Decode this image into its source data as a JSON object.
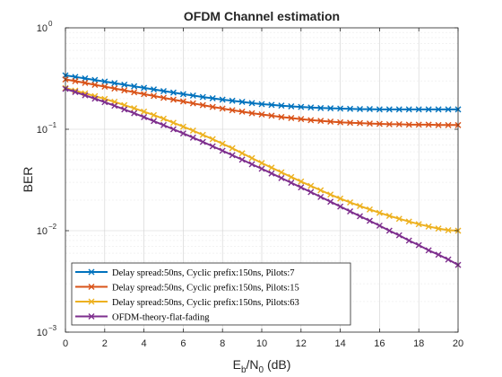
{
  "chart_data": {
    "type": "line",
    "title": "OFDM Channel estimation",
    "xlabel": "E_b/N_0 (dB)",
    "ylabel": "BER",
    "xlim": [
      0,
      20
    ],
    "ylim": [
      0.001,
      1
    ],
    "yscale": "log",
    "grid": true,
    "minor_grid": true,
    "legend_position": "bottom-left",
    "x": [
      0,
      0.5,
      1,
      1.5,
      2,
      2.5,
      3,
      3.5,
      4,
      4.5,
      5,
      5.5,
      6,
      6.5,
      7,
      7.5,
      8,
      8.5,
      9,
      9.5,
      10,
      10.5,
      11,
      11.5,
      12,
      12.5,
      13,
      13.5,
      14,
      14.5,
      15,
      15.5,
      16,
      16.5,
      17,
      17.5,
      18,
      18.5,
      19,
      19.5,
      20
    ],
    "x_ticks": [
      0,
      2,
      4,
      6,
      8,
      10,
      12,
      14,
      16,
      18,
      20
    ],
    "x_tick_labels": [
      "0",
      "2",
      "4",
      "6",
      "8",
      "10",
      "12",
      "14",
      "16",
      "18",
      "20"
    ],
    "y_ticks": [
      1,
      0.1,
      0.01,
      0.001
    ],
    "y_tick_labels": [
      {
        "base": "10",
        "exp": "0"
      },
      {
        "base": "10",
        "exp": "−1"
      },
      {
        "base": "10",
        "exp": "−2"
      },
      {
        "base": "10",
        "exp": "−3"
      }
    ],
    "series": [
      {
        "name": "Delay spread:50ns, Cyclic prefix:150ns, Pilots:7",
        "color": "#0072BD",
        "values": [
          0.34,
          0.328,
          0.317,
          0.306,
          0.295,
          0.285,
          0.275,
          0.265,
          0.256,
          0.247,
          0.238,
          0.23,
          0.222,
          0.215,
          0.208,
          0.202,
          0.196,
          0.191,
          0.186,
          0.181,
          0.177,
          0.174,
          0.171,
          0.168,
          0.166,
          0.164,
          0.162,
          0.161,
          0.16,
          0.159,
          0.158,
          0.158,
          0.157,
          0.157,
          0.157,
          0.157,
          0.157,
          0.157,
          0.157,
          0.157,
          0.157
        ]
      },
      {
        "name": "Delay spread:50ns, Cyclic prefix:150ns, Pilots:15",
        "color": "#D95319",
        "values": [
          0.31,
          0.298,
          0.286,
          0.274,
          0.263,
          0.252,
          0.242,
          0.232,
          0.222,
          0.213,
          0.204,
          0.196,
          0.188,
          0.18,
          0.173,
          0.166,
          0.16,
          0.154,
          0.149,
          0.144,
          0.14,
          0.136,
          0.132,
          0.129,
          0.126,
          0.123,
          0.121,
          0.119,
          0.117,
          0.116,
          0.115,
          0.114,
          0.113,
          0.112,
          0.112,
          0.111,
          0.111,
          0.111,
          0.11,
          0.11,
          0.11
        ]
      },
      {
        "name": "Delay spread:50ns, Cyclic prefix:150ns, Pilots:63",
        "color": "#EDB120",
        "values": [
          0.255,
          0.24,
          0.226,
          0.212,
          0.199,
          0.186,
          0.173,
          0.161,
          0.149,
          0.138,
          0.127,
          0.116,
          0.106,
          0.097,
          0.088,
          0.08,
          0.072,
          0.065,
          0.058,
          0.052,
          0.0465,
          0.0418,
          0.0376,
          0.0338,
          0.0305,
          0.0276,
          0.025,
          0.0227,
          0.0207,
          0.019,
          0.0175,
          0.0162,
          0.015,
          0.014,
          0.0131,
          0.0123,
          0.0116,
          0.011,
          0.0105,
          0.0101,
          0.01
        ]
      },
      {
        "name": "OFDM-theory-flat-fading",
        "color": "#7E2F8E",
        "values": [
          0.25,
          0.2327,
          0.2161,
          0.2002,
          0.185,
          0.1705,
          0.1568,
          0.1439,
          0.1318,
          0.1204,
          0.1099,
          0.1001,
          0.091,
          0.0827,
          0.075,
          0.0679,
          0.0614,
          0.0555,
          0.0501,
          0.0452,
          0.0408,
          0.0367,
          0.033,
          0.0297,
          0.0267,
          0.024,
          0.0215,
          0.0193,
          0.0173,
          0.0155,
          0.0139,
          0.0125,
          0.0112,
          0.01,
          0.009,
          0.008,
          0.0072,
          0.0064,
          0.0058,
          0.0052,
          0.0046
        ]
      }
    ]
  }
}
